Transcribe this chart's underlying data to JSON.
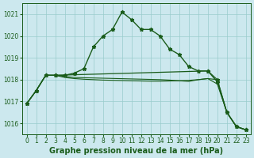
{
  "bg_color": "#cce8ee",
  "grid_color": "#99cccc",
  "line_color": "#1a5c1a",
  "xlabel": "Graphe pression niveau de la mer (hPa)",
  "ylim": [
    1015.5,
    1021.5
  ],
  "xlim": [
    -0.5,
    23.5
  ],
  "yticks": [
    1016,
    1017,
    1018,
    1019,
    1020,
    1021
  ],
  "xticks": [
    0,
    1,
    2,
    3,
    4,
    5,
    6,
    7,
    8,
    9,
    10,
    11,
    12,
    13,
    14,
    15,
    16,
    17,
    18,
    19,
    20,
    21,
    22,
    23
  ],
  "line1_x": [
    0,
    1,
    2,
    3,
    4,
    5,
    6,
    7,
    8,
    9,
    10,
    11,
    12,
    13,
    14,
    15,
    16,
    17,
    18,
    19,
    20,
    21,
    22,
    23
  ],
  "line1_y": [
    1016.9,
    1017.5,
    1018.2,
    1018.2,
    1018.2,
    1018.3,
    1018.5,
    1019.5,
    1020.0,
    1020.3,
    1021.1,
    1020.75,
    1020.3,
    1020.3,
    1020.0,
    1019.4,
    1019.15,
    1018.6,
    1018.4,
    1018.4,
    1017.9,
    1016.5,
    1015.85,
    1015.7
  ],
  "line2_x": [
    0,
    1,
    2,
    3,
    19,
    20,
    21,
    22,
    23
  ],
  "line2_y": [
    1016.9,
    1017.5,
    1018.2,
    1018.2,
    1018.4,
    1018.0,
    1016.5,
    1015.85,
    1015.7
  ],
  "line3_x": [
    0,
    1,
    2,
    3,
    4,
    5,
    14,
    15,
    16,
    17,
    18,
    19,
    20,
    21,
    22,
    23
  ],
  "line3_y": [
    1016.9,
    1017.5,
    1018.2,
    1018.2,
    1018.15,
    1018.1,
    1018.0,
    1017.98,
    1017.95,
    1017.92,
    1018.0,
    1018.05,
    1017.8,
    1016.5,
    1015.85,
    1015.7
  ],
  "line4_x": [
    0,
    1,
    2,
    3,
    4,
    5,
    6,
    7,
    8,
    9,
    10,
    11,
    12,
    13,
    14,
    15,
    16,
    17,
    18,
    19,
    20,
    21,
    22,
    23
  ],
  "line4_y": [
    1016.9,
    1017.5,
    1018.2,
    1018.2,
    1018.1,
    1018.05,
    1018.02,
    1018.0,
    1017.98,
    1017.97,
    1017.96,
    1017.95,
    1017.94,
    1017.93,
    1017.93,
    1017.94,
    1017.95,
    1017.97,
    1018.0,
    1018.05,
    1018.0,
    1016.5,
    1015.85,
    1015.7
  ],
  "font_size_xlabel": 7.0,
  "font_size_ticks": 5.5
}
